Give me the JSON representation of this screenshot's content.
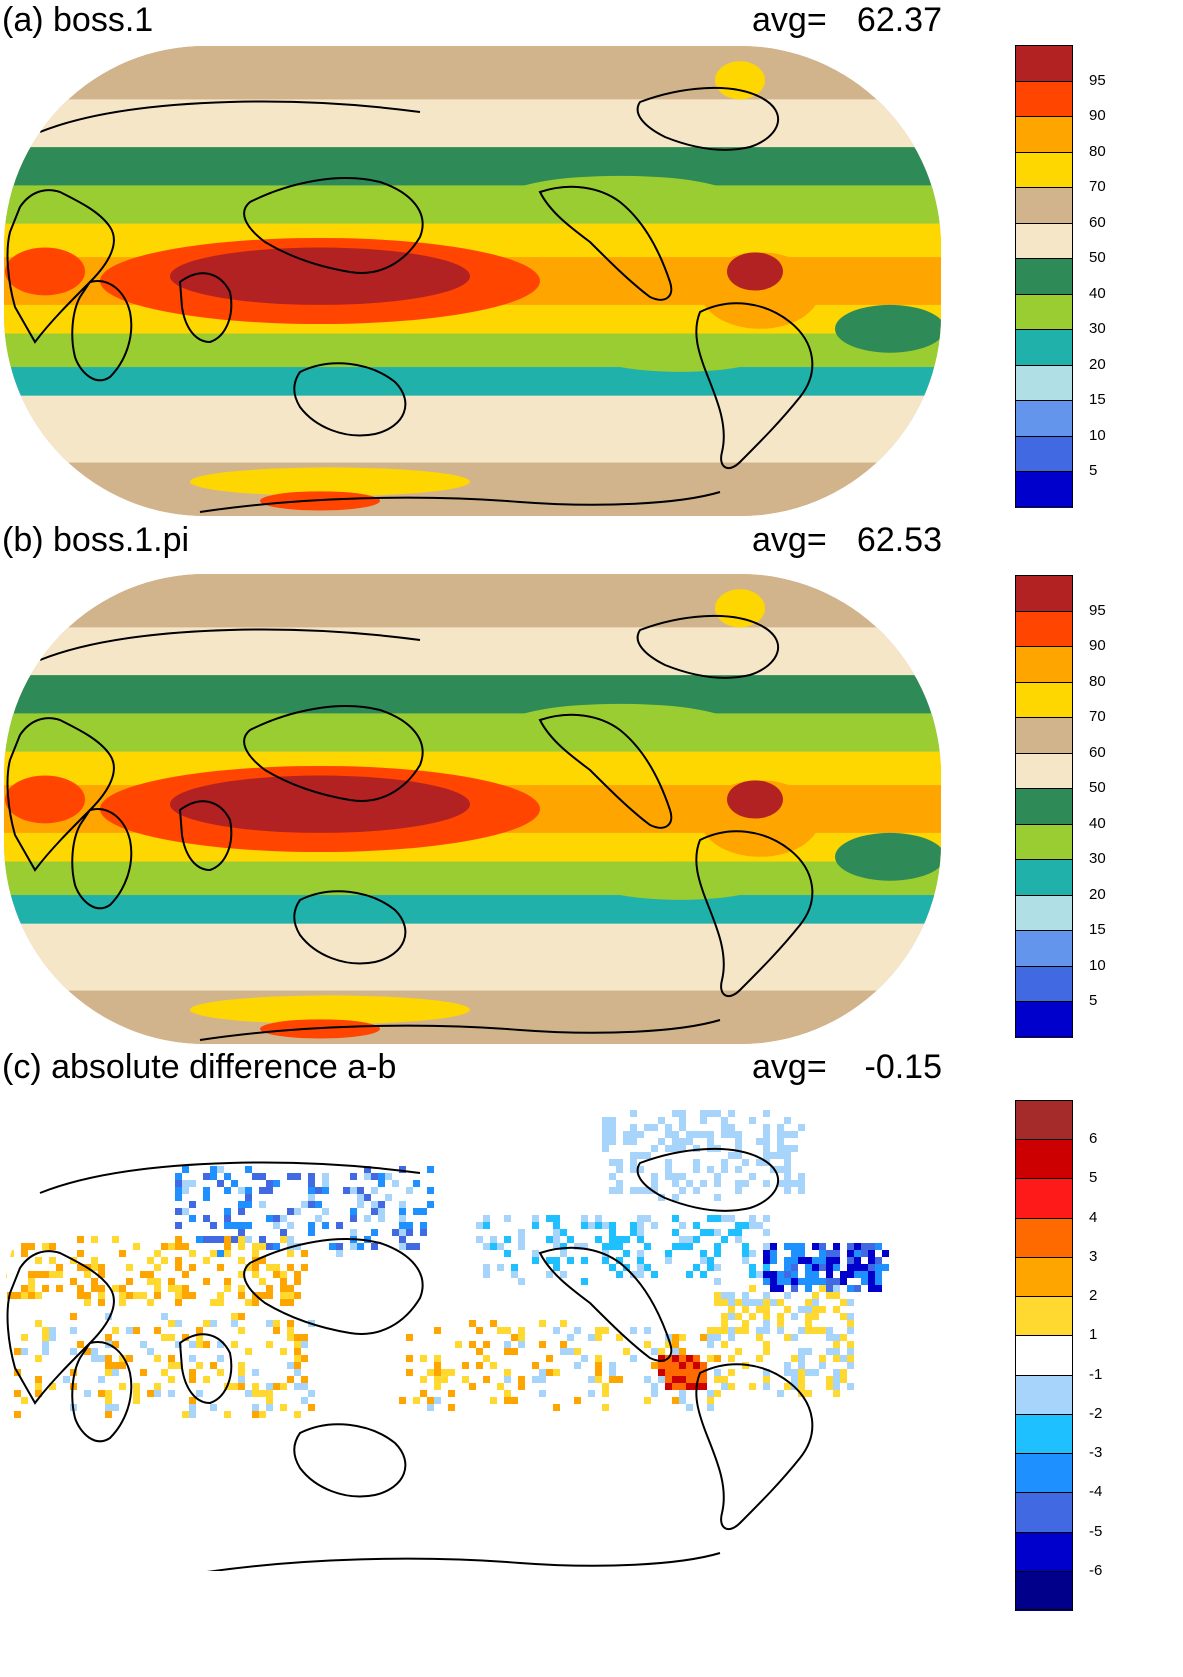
{
  "panels": [
    {
      "id": "a",
      "title": "(a) boss.1",
      "avg_label": "avg=",
      "avg_value": "62.37",
      "colorbar": {
        "labels": [
          "95",
          "90",
          "80",
          "70",
          "60",
          "50",
          "40",
          "30",
          "20",
          "15",
          "10",
          "5"
        ],
        "colors": [
          "#b22222",
          "#ff4500",
          "#ffa500",
          "#ffd700",
          "#d2b48c",
          "#f5e6c8",
          "#2e8b57",
          "#9acd32",
          "#20b2aa",
          "#b0e0e6",
          "#6495ed",
          "#4169e1",
          "#0000cd"
        ]
      }
    },
    {
      "id": "b",
      "title": "(b) boss.1.pi",
      "avg_label": "avg=",
      "avg_value": "62.53",
      "colorbar": {
        "labels": [
          "95",
          "90",
          "80",
          "70",
          "60",
          "50",
          "40",
          "30",
          "20",
          "15",
          "10",
          "5"
        ],
        "colors": [
          "#b22222",
          "#ff4500",
          "#ffa500",
          "#ffd700",
          "#d2b48c",
          "#f5e6c8",
          "#2e8b57",
          "#9acd32",
          "#20b2aa",
          "#b0e0e6",
          "#6495ed",
          "#4169e1",
          "#0000cd"
        ]
      }
    },
    {
      "id": "c",
      "title": "(c) absolute difference a-b",
      "avg_label": "avg=",
      "avg_value": "-0.15",
      "colorbar": {
        "labels": [
          "6",
          "5",
          "4",
          "3",
          "2",
          "1",
          "-1",
          "-2",
          "-3",
          "-4",
          "-5",
          "-6"
        ],
        "colors": [
          "#a52a2a",
          "#cc0000",
          "#ff1a1a",
          "#ff6a00",
          "#ffa500",
          "#ffd92f",
          "#ffffff",
          "#a6d4fa",
          "#1ec0ff",
          "#1e90ff",
          "#4169e1",
          "#0000cd",
          "#00008b"
        ]
      }
    }
  ]
}
